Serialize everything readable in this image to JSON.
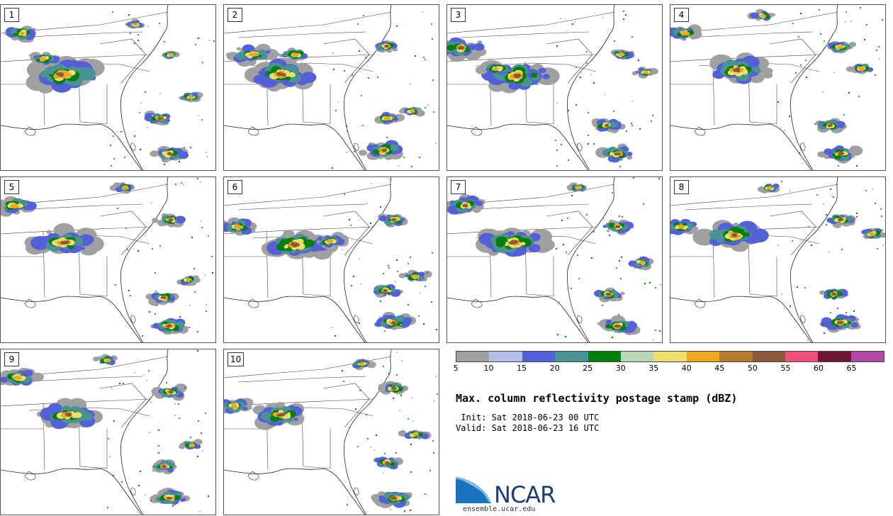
{
  "panels": [
    {
      "label": "1",
      "storms": [
        [
          85,
          98,
          38,
          1
        ],
        [
          30,
          40,
          16,
          0.7
        ],
        [
          60,
          76,
          14,
          0.7
        ],
        [
          240,
          70,
          8,
          0.6
        ],
        [
          225,
          160,
          14,
          0.9
        ],
        [
          238,
          210,
          16,
          0.9
        ],
        [
          268,
          130,
          10,
          0.5
        ],
        [
          190,
          28,
          8,
          0.5
        ]
      ]
    },
    {
      "label": "2",
      "storms": [
        [
          80,
          98,
          34,
          0.9
        ],
        [
          40,
          70,
          20,
          0.6
        ],
        [
          230,
          58,
          12,
          0.9
        ],
        [
          230,
          160,
          12,
          0.7
        ],
        [
          225,
          205,
          20,
          1
        ],
        [
          265,
          150,
          10,
          0.7
        ],
        [
          100,
          70,
          14,
          0.6
        ]
      ]
    },
    {
      "label": "3",
      "storms": [
        [
          100,
          100,
          32,
          0.9
        ],
        [
          20,
          60,
          22,
          0.8
        ],
        [
          245,
          70,
          12,
          0.7
        ],
        [
          225,
          170,
          14,
          0.8
        ],
        [
          240,
          210,
          18,
          0.9
        ],
        [
          280,
          95,
          10,
          0.6
        ],
        [
          70,
          90,
          14,
          0.6
        ]
      ]
    },
    {
      "label": "4",
      "storms": [
        [
          95,
          92,
          30,
          1
        ],
        [
          20,
          40,
          16,
          0.6
        ],
        [
          240,
          60,
          14,
          0.7
        ],
        [
          225,
          170,
          14,
          0.9
        ],
        [
          240,
          210,
          18,
          0.9
        ],
        [
          270,
          90,
          12,
          0.6
        ],
        [
          130,
          15,
          10,
          0.5
        ]
      ]
    },
    {
      "label": "5",
      "storms": [
        [
          90,
          92,
          30,
          0.9
        ],
        [
          20,
          40,
          18,
          0.7
        ],
        [
          240,
          60,
          14,
          0.8
        ],
        [
          230,
          170,
          14,
          0.8
        ],
        [
          238,
          210,
          18,
          1
        ],
        [
          265,
          145,
          10,
          0.6
        ],
        [
          175,
          15,
          10,
          0.5
        ]
      ]
    },
    {
      "label": "6",
      "storms": [
        [
          100,
          95,
          32,
          0.9
        ],
        [
          20,
          70,
          16,
          0.6
        ],
        [
          240,
          60,
          14,
          0.9
        ],
        [
          228,
          160,
          14,
          0.8
        ],
        [
          240,
          205,
          18,
          1
        ],
        [
          270,
          140,
          12,
          0.7
        ],
        [
          150,
          90,
          14,
          0.6
        ]
      ]
    },
    {
      "label": "7",
      "storms": [
        [
          95,
          92,
          32,
          0.9
        ],
        [
          25,
          40,
          20,
          0.8
        ],
        [
          240,
          70,
          14,
          0.8
        ],
        [
          228,
          165,
          14,
          0.8
        ],
        [
          240,
          210,
          18,
          0.9
        ],
        [
          275,
          120,
          12,
          0.6
        ],
        [
          185,
          15,
          8,
          0.5
        ]
      ]
    },
    {
      "label": "8",
      "storms": [
        [
          90,
          82,
          30,
          0.9
        ],
        [
          15,
          70,
          16,
          0.7
        ],
        [
          240,
          60,
          14,
          0.8
        ],
        [
          230,
          165,
          14,
          0.8
        ],
        [
          240,
          205,
          18,
          0.9
        ],
        [
          285,
          80,
          12,
          0.6
        ],
        [
          140,
          15,
          10,
          0.5
        ]
      ]
    },
    {
      "label": "9",
      "storms": [
        [
          95,
          92,
          30,
          0.9
        ],
        [
          25,
          40,
          18,
          0.7
        ],
        [
          240,
          60,
          14,
          0.8
        ],
        [
          230,
          165,
          14,
          0.8
        ],
        [
          238,
          210,
          18,
          0.9
        ],
        [
          270,
          135,
          10,
          0.6
        ],
        [
          150,
          15,
          10,
          0.5
        ]
      ]
    },
    {
      "label": "10",
      "storms": [
        [
          80,
          92,
          26,
          0.9
        ],
        [
          15,
          80,
          16,
          0.6
        ],
        [
          240,
          55,
          14,
          0.9
        ],
        [
          230,
          160,
          14,
          0.8
        ],
        [
          240,
          210,
          18,
          0.9
        ],
        [
          270,
          120,
          12,
          0.6
        ],
        [
          195,
          20,
          10,
          0.5
        ]
      ]
    }
  ],
  "colorbar": {
    "colors": [
      "#a0a0a0",
      "#b3bde8",
      "#5460d8",
      "#4a9393",
      "#00800a",
      "#b8d7b8",
      "#efde6b",
      "#eca820",
      "#b37b2e",
      "#8b5a3c",
      "#ef5078",
      "#6e1735",
      "#b04aa4"
    ],
    "ticks": [
      "5",
      "10",
      "15",
      "20",
      "25",
      "30",
      "35",
      "40",
      "45",
      "50",
      "55",
      "60",
      "65"
    ]
  },
  "title": "Max. column reflectivity postage stamp (dBZ)",
  "init": " Init: Sat 2018-06-23 00 UTC",
  "valid": "Valid: Sat 2018-06-23 16 UTC",
  "logo": {
    "text": "NCAR",
    "site": "ensemble.ucar.edu"
  }
}
